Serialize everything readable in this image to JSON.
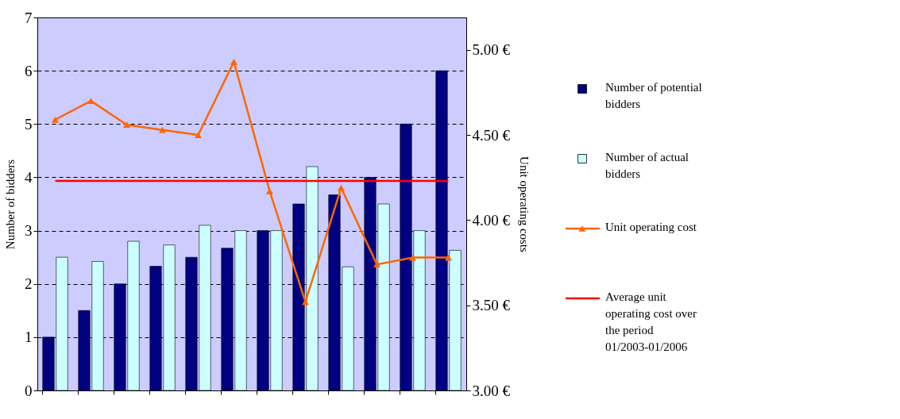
{
  "chart_data": {
    "type": "bar",
    "ylabel": "Number of bidders",
    "y2label": "Unit operating costs",
    "categories": [
      null,
      null,
      null,
      null,
      null,
      null,
      null,
      null,
      null,
      null,
      null,
      null
    ],
    "ylim": [
      0,
      7
    ],
    "yticks": [
      0,
      1,
      2,
      3,
      4,
      5,
      6,
      7
    ],
    "y2lim": [
      3,
      5.19
    ],
    "y2ticks": [
      {
        "value": 3,
        "label": "3.00 €"
      },
      {
        "value": 3.5,
        "label": "3.50 €"
      },
      {
        "value": 4,
        "label": "4.00 €"
      },
      {
        "value": 4.5,
        "label": "4.50 €"
      },
      {
        "value": 5,
        "label": "5.00 €"
      }
    ],
    "grid": "y",
    "legend": "right",
    "tick_labels": "y",
    "series": [
      {
        "name": "Number of potential bidders",
        "color": "#000080",
        "values": [
          1,
          1.5,
          2,
          2.33,
          2.5,
          2.67,
          3,
          3.5,
          3.67,
          4,
          5,
          6
        ]
      },
      {
        "name": "Number of actual bidders",
        "color": "#ccffff",
        "values": [
          2.5,
          2.42,
          2.8,
          2.73,
          3.1,
          3.0,
          3.0,
          4.2,
          2.32,
          3.5,
          3.0,
          2.63
        ]
      },
      {
        "name": "Unit operating cost",
        "type": "line",
        "axis": "y2",
        "color": "#ff6600",
        "marker": "triangle",
        "values": [
          4.59,
          4.7,
          4.56,
          4.53,
          4.5,
          4.93,
          4.17,
          3.52,
          4.19,
          3.74,
          3.78,
          3.78
        ]
      }
    ],
    "ref_lines": [
      {
        "axis": "y2",
        "value": 4.23,
        "label": "Average unit operating cost over the period 01/2003-01/2006",
        "color": "#ff0000"
      }
    ]
  }
}
